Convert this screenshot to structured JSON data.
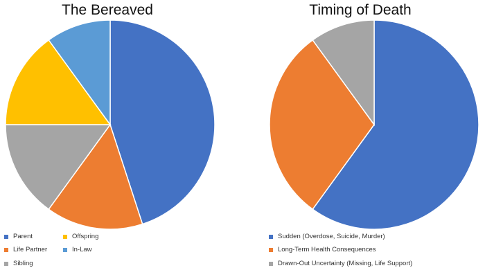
{
  "chart_data": [
    {
      "type": "pie",
      "title": "The Bereaved",
      "categories": [
        "Parent",
        "Life Partner",
        "Sibling",
        "Offspring",
        "In-Law"
      ],
      "values": [
        45,
        15,
        15,
        15,
        10
      ],
      "colors": [
        "#4472C4",
        "#ED7D31",
        "#A5A5A5",
        "#FFC000",
        "#5B9BD5"
      ],
      "legend_position": "bottom",
      "start_angle": "top, clockwise"
    },
    {
      "type": "pie",
      "title": "Timing of Death",
      "categories": [
        "Sudden (Overdose, Suicide, Murder)",
        "Long-Term Health Consequences",
        "Drawn-Out Uncertainty (Missing, Life Support)"
      ],
      "values": [
        60,
        30,
        10
      ],
      "colors": [
        "#4472C4",
        "#ED7D31",
        "#A5A5A5"
      ],
      "legend_position": "bottom",
      "start_angle": "top, clockwise"
    }
  ]
}
